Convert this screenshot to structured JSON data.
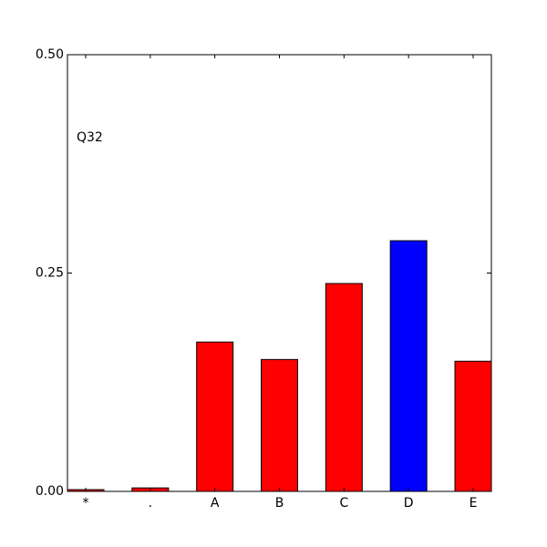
{
  "chart_data": {
    "type": "bar",
    "annotation": "Q32",
    "categories": [
      "*",
      ".",
      "A",
      "B",
      "C",
      "D",
      "E"
    ],
    "values": [
      0.002,
      0.004,
      0.171,
      0.151,
      0.238,
      0.287,
      0.149
    ],
    "colors": [
      "#ff0000",
      "#ff0000",
      "#ff0000",
      "#ff0000",
      "#ff0000",
      "#0000ff",
      "#ff0000"
    ],
    "ylim": [
      0,
      0.5
    ],
    "yticks": [
      {
        "value": 0,
        "label": "0.00"
      },
      {
        "value": 0.25,
        "label": "0.25"
      },
      {
        "value": 0.5,
        "label": "0.50"
      }
    ]
  }
}
